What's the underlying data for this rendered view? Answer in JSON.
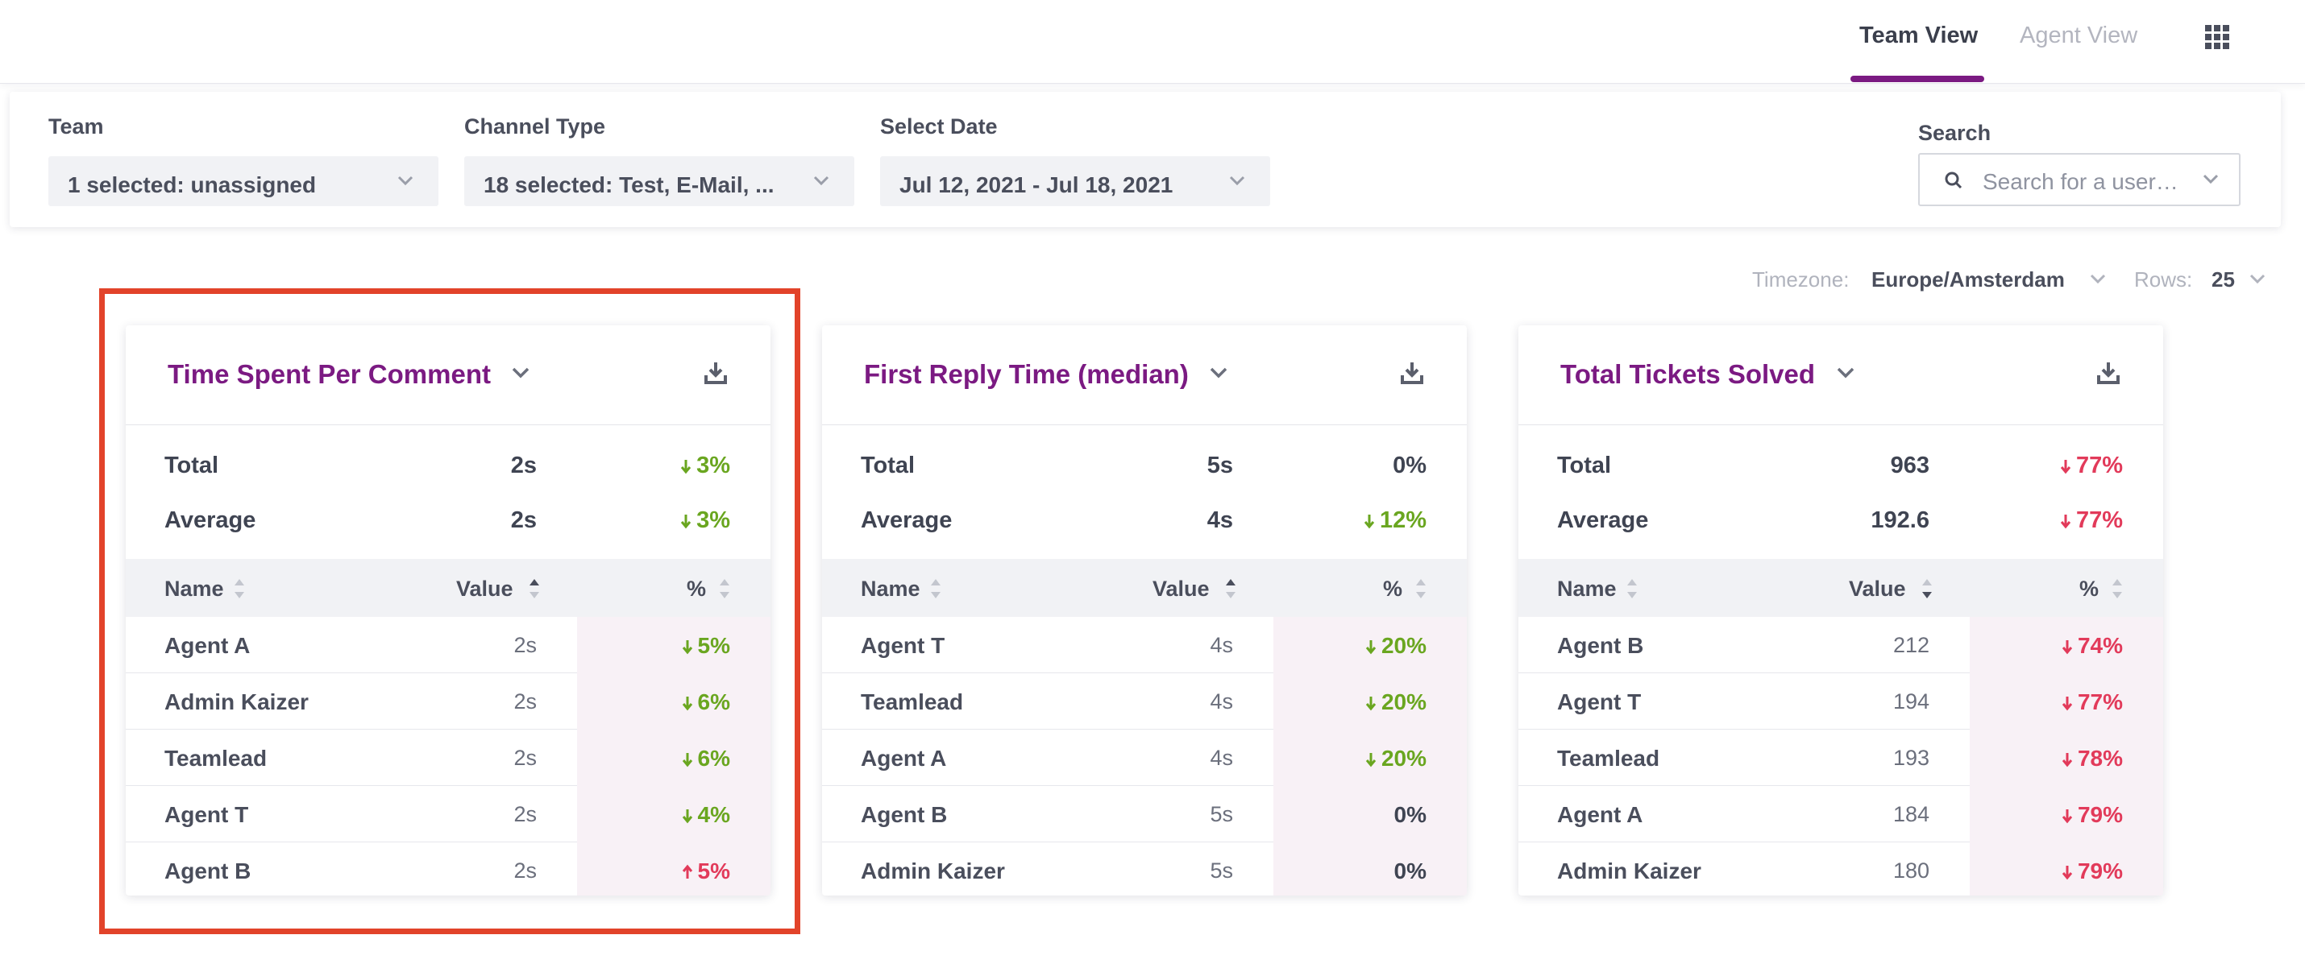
{
  "nav": {
    "tab_team": "Team View",
    "tab_agent": "Agent View",
    "apps_icon": "grid-apps-icon"
  },
  "filters": {
    "team_label": "Team",
    "team_value": "1 selected: unassigned",
    "channel_label": "Channel Type",
    "channel_value": "18 selected: Test, E-Mail, ...",
    "date_label": "Select Date",
    "date_value": "Jul 12, 2021 - Jul 18, 2021",
    "search_label": "Search",
    "search_placeholder": "Search for a user…"
  },
  "options": {
    "timezone_label": "Timezone:",
    "timezone_value": "Europe/Amsterdam",
    "rows_label": "Rows:",
    "rows_value": "25"
  },
  "colors": {
    "brand": "#7b1a82",
    "positive": "#6aa620",
    "negative": "#e23a5a",
    "highlight": "#e2432a"
  },
  "cards": [
    {
      "title": "Time Spent Per Comment",
      "total": {
        "label": "Total",
        "value": "2s",
        "pct": "3%",
        "dir": "down",
        "tone": "green"
      },
      "average": {
        "label": "Average",
        "value": "2s",
        "pct": "3%",
        "dir": "down",
        "tone": "green"
      },
      "columns": {
        "name": "Name",
        "value": "Value",
        "pct": "%"
      },
      "rows": [
        {
          "name": "Agent A",
          "value": "2s",
          "pct": "5%",
          "dir": "down",
          "tone": "green"
        },
        {
          "name": "Admin Kaizer",
          "value": "2s",
          "pct": "6%",
          "dir": "down",
          "tone": "green"
        },
        {
          "name": "Teamlead",
          "value": "2s",
          "pct": "6%",
          "dir": "down",
          "tone": "green"
        },
        {
          "name": "Agent T",
          "value": "2s",
          "pct": "4%",
          "dir": "down",
          "tone": "green"
        },
        {
          "name": "Agent B",
          "value": "2s",
          "pct": "5%",
          "dir": "up",
          "tone": "red"
        }
      ]
    },
    {
      "title": "First Reply Time (median)",
      "total": {
        "label": "Total",
        "value": "5s",
        "pct": "0%",
        "dir": "none",
        "tone": "dark"
      },
      "average": {
        "label": "Average",
        "value": "4s",
        "pct": "12%",
        "dir": "down",
        "tone": "green"
      },
      "columns": {
        "name": "Name",
        "value": "Value",
        "pct": "%"
      },
      "rows": [
        {
          "name": "Agent T",
          "value": "4s",
          "pct": "20%",
          "dir": "down",
          "tone": "green"
        },
        {
          "name": "Teamlead",
          "value": "4s",
          "pct": "20%",
          "dir": "down",
          "tone": "green"
        },
        {
          "name": "Agent A",
          "value": "4s",
          "pct": "20%",
          "dir": "down",
          "tone": "green"
        },
        {
          "name": "Agent B",
          "value": "5s",
          "pct": "0%",
          "dir": "none",
          "tone": "dark"
        },
        {
          "name": "Admin Kaizer",
          "value": "5s",
          "pct": "0%",
          "dir": "none",
          "tone": "dark"
        }
      ]
    },
    {
      "title": "Total Tickets Solved",
      "total": {
        "label": "Total",
        "value": "963",
        "pct": "77%",
        "dir": "down",
        "tone": "red"
      },
      "average": {
        "label": "Average",
        "value": "192.6",
        "pct": "77%",
        "dir": "down",
        "tone": "red"
      },
      "columns": {
        "name": "Name",
        "value": "Value",
        "pct": "%"
      },
      "rows": [
        {
          "name": "Agent B",
          "value": "212",
          "pct": "74%",
          "dir": "down",
          "tone": "red"
        },
        {
          "name": "Agent T",
          "value": "194",
          "pct": "77%",
          "dir": "down",
          "tone": "red"
        },
        {
          "name": "Teamlead",
          "value": "193",
          "pct": "78%",
          "dir": "down",
          "tone": "red"
        },
        {
          "name": "Agent A",
          "value": "184",
          "pct": "79%",
          "dir": "down",
          "tone": "red"
        },
        {
          "name": "Admin Kaizer",
          "value": "180",
          "pct": "79%",
          "dir": "down",
          "tone": "red"
        }
      ]
    }
  ]
}
